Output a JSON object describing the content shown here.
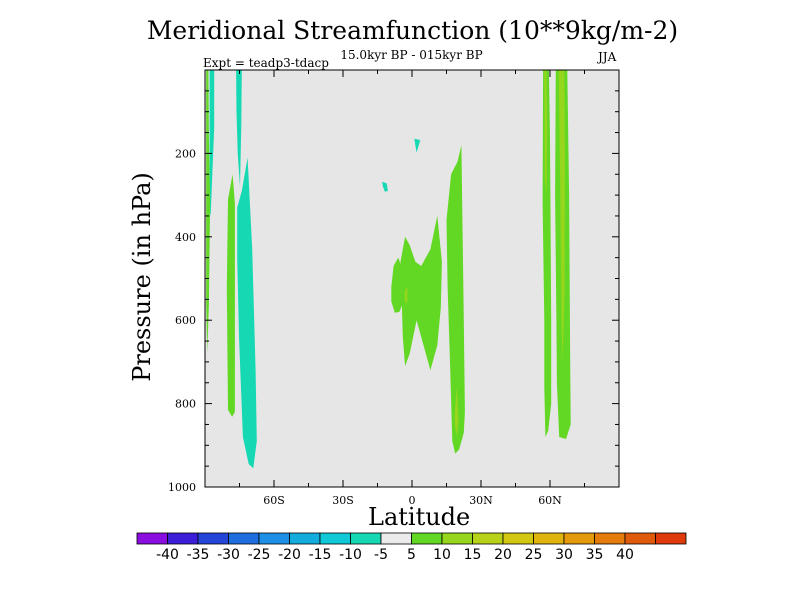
{
  "chart_data": {
    "type": "contour",
    "title": "Meridional Streamfunction (10**9kg/m-2)",
    "subtitle": "15.0kyr BP - 015kyr BP",
    "left_label": "Expt = teadp3-tdacp",
    "right_label": "JJA",
    "xlabel": "Latitude",
    "ylabel": "Pressure (in hPa)",
    "xlim": [
      -90,
      90
    ],
    "ylim": [
      0,
      1000
    ],
    "x_ticks": [
      {
        "value": -60,
        "label": "60S"
      },
      {
        "value": -30,
        "label": "30S"
      },
      {
        "value": 0,
        "label": "0"
      },
      {
        "value": 30,
        "label": "30N"
      },
      {
        "value": 60,
        "label": "60N"
      }
    ],
    "y_ticks": [
      {
        "value": 200,
        "label": "200"
      },
      {
        "value": 400,
        "label": "400"
      },
      {
        "value": 600,
        "label": "600"
      },
      {
        "value": 800,
        "label": "800"
      },
      {
        "value": 1000,
        "label": "1000"
      }
    ],
    "background_color": "#e6e6e6",
    "colorbar": {
      "colors": [
        "#8a0ee0",
        "#3c1ed8",
        "#2445d8",
        "#1f6ee0",
        "#1e8fe6",
        "#14acdc",
        "#10c8d6",
        "#16d9b4",
        "#ebebeb",
        "#62d824",
        "#96d61c",
        "#b8d21a",
        "#d2c814",
        "#e0b40e",
        "#e49a0c",
        "#e47c0c",
        "#e05a0c",
        "#de3a0c"
      ],
      "levels": [
        "-40",
        "-35",
        "-30",
        "-25",
        "-20",
        "-15",
        "-10",
        "-5",
        "5",
        "10",
        "15",
        "20",
        "25",
        "30",
        "35",
        "40"
      ]
    },
    "regions": [
      {
        "level": "-5 to -10",
        "color": "#16d9b4",
        "points": [
          [
            -88,
            0
          ],
          [
            -86,
            0
          ],
          [
            -86,
            140
          ],
          [
            -87.5,
            340
          ],
          [
            -88,
            360
          ]
        ]
      },
      {
        "level": "5 to 10",
        "color": "#62d824",
        "points": [
          [
            -89.5,
            0
          ],
          [
            -88.5,
            0
          ],
          [
            -88.3,
            160
          ],
          [
            -87.8,
            320
          ],
          [
            -88.3,
            560
          ],
          [
            -89,
            680
          ],
          [
            -89.5,
            560
          ]
        ]
      },
      {
        "level": "-5 to -10",
        "color": "#16d9b4",
        "points": [
          [
            -76.5,
            0
          ],
          [
            -74,
            0
          ],
          [
            -74.2,
            130
          ],
          [
            -74.8,
            280
          ],
          [
            -75.8,
            200
          ],
          [
            -76.3,
            100
          ]
        ]
      },
      {
        "level": "5 to 10",
        "color": "#62d824",
        "points": [
          [
            -80,
            310
          ],
          [
            -78,
            250
          ],
          [
            -77,
            320
          ],
          [
            -77,
            820
          ],
          [
            -78.2,
            832
          ],
          [
            -80,
            815
          ],
          [
            -80.5,
            520
          ]
        ]
      },
      {
        "level": "-5 to -10",
        "color": "#16d9b4",
        "points": [
          [
            -76,
            330
          ],
          [
            -74,
            290
          ],
          [
            -71.5,
            210
          ],
          [
            -69.5,
            430
          ],
          [
            -68,
            720
          ],
          [
            -67.5,
            890
          ],
          [
            -69,
            955
          ],
          [
            -71,
            945
          ],
          [
            -73.5,
            880
          ],
          [
            -75.2,
            640
          ],
          [
            -76,
            450
          ]
        ]
      },
      {
        "level": "-5 to -10",
        "color": "#16d9b4",
        "points": [
          [
            -13,
            268
          ],
          [
            -11,
            272
          ],
          [
            -10.5,
            290
          ],
          [
            -11.8,
            292
          ],
          [
            -12.6,
            280
          ]
        ]
      },
      {
        "level": "-5 to -10",
        "color": "#16d9b4",
        "points": [
          [
            1,
            165
          ],
          [
            3.6,
            168
          ],
          [
            2,
            198
          ],
          [
            1.4,
            178
          ]
        ]
      },
      {
        "level": "5 to 10",
        "color": "#62d824",
        "points": [
          [
            -9,
            520
          ],
          [
            -8,
            470
          ],
          [
            -6,
            450
          ],
          [
            -4,
            480
          ],
          [
            -3,
            450
          ],
          [
            -3,
            520
          ],
          [
            -4,
            560
          ],
          [
            -5.5,
            580
          ],
          [
            -7.5,
            582
          ],
          [
            -9,
            555
          ]
        ]
      },
      {
        "level": "5 to 10",
        "color": "#62d824",
        "points": [
          [
            -5,
            460
          ],
          [
            -3,
            400
          ],
          [
            -1,
            420
          ],
          [
            1.5,
            460
          ],
          [
            4,
            470
          ],
          [
            8,
            430
          ],
          [
            11,
            350
          ],
          [
            13,
            460
          ],
          [
            12.5,
            570
          ],
          [
            11,
            660
          ],
          [
            8,
            720
          ],
          [
            7,
            700
          ],
          [
            4,
            640
          ],
          [
            2,
            600
          ],
          [
            -1,
            680
          ],
          [
            -3,
            710
          ],
          [
            -4,
            640
          ],
          [
            -4.5,
            540
          ]
        ]
      },
      {
        "level": "10 to 15",
        "color": "#96d61c",
        "points": [
          [
            -3.2,
            530
          ],
          [
            -2,
            520
          ],
          [
            -2.1,
            560
          ],
          [
            -3.1,
            555
          ]
        ]
      },
      {
        "level": "5 to 10",
        "color": "#62d824",
        "points": [
          [
            15,
            360
          ],
          [
            17,
            250
          ],
          [
            19.8,
            220
          ],
          [
            21.5,
            180
          ],
          [
            22.5,
            600
          ],
          [
            23,
            820
          ],
          [
            22.5,
            870
          ],
          [
            20.5,
            910
          ],
          [
            18.8,
            920
          ],
          [
            17.5,
            890
          ],
          [
            16.5,
            700
          ],
          [
            15.5,
            520
          ]
        ]
      },
      {
        "level": "10 to 15",
        "color": "#96d61c",
        "points": [
          [
            18.5,
            830
          ],
          [
            19.5,
            760
          ],
          [
            20.2,
            840
          ],
          [
            19.6,
            878
          ],
          [
            18.8,
            860
          ]
        ]
      },
      {
        "level": "5 to 10",
        "color": "#62d824",
        "points": [
          [
            57,
            0
          ],
          [
            59.5,
            0
          ],
          [
            60,
            160
          ],
          [
            60.5,
            600
          ],
          [
            60.5,
            800
          ],
          [
            59.2,
            865
          ],
          [
            58,
            880
          ],
          [
            57.5,
            760
          ],
          [
            57.5,
            600
          ],
          [
            56.8,
            320
          ]
        ]
      },
      {
        "level": "10 to 15",
        "color": "#96d61c",
        "points": [
          [
            57.5,
            0
          ],
          [
            58.5,
            0
          ],
          [
            58.8,
            150
          ],
          [
            58.5,
            300
          ],
          [
            57.8,
            260
          ]
        ]
      },
      {
        "level": "5 to 10",
        "color": "#62d824",
        "points": [
          [
            62.5,
            0
          ],
          [
            67.5,
            0
          ],
          [
            68.3,
            300
          ],
          [
            68.8,
            700
          ],
          [
            69,
            850
          ],
          [
            67,
            885
          ],
          [
            64,
            880
          ],
          [
            63,
            750
          ],
          [
            62.8,
            600
          ],
          [
            62.2,
            300
          ]
        ]
      },
      {
        "level": "10 to 15",
        "color": "#96d61c",
        "points": [
          [
            63.8,
            0
          ],
          [
            66.2,
            0
          ],
          [
            66.5,
            200
          ],
          [
            66.4,
            520
          ],
          [
            65.5,
            700
          ],
          [
            65,
            600
          ],
          [
            64.5,
            300
          ]
        ]
      }
    ]
  }
}
